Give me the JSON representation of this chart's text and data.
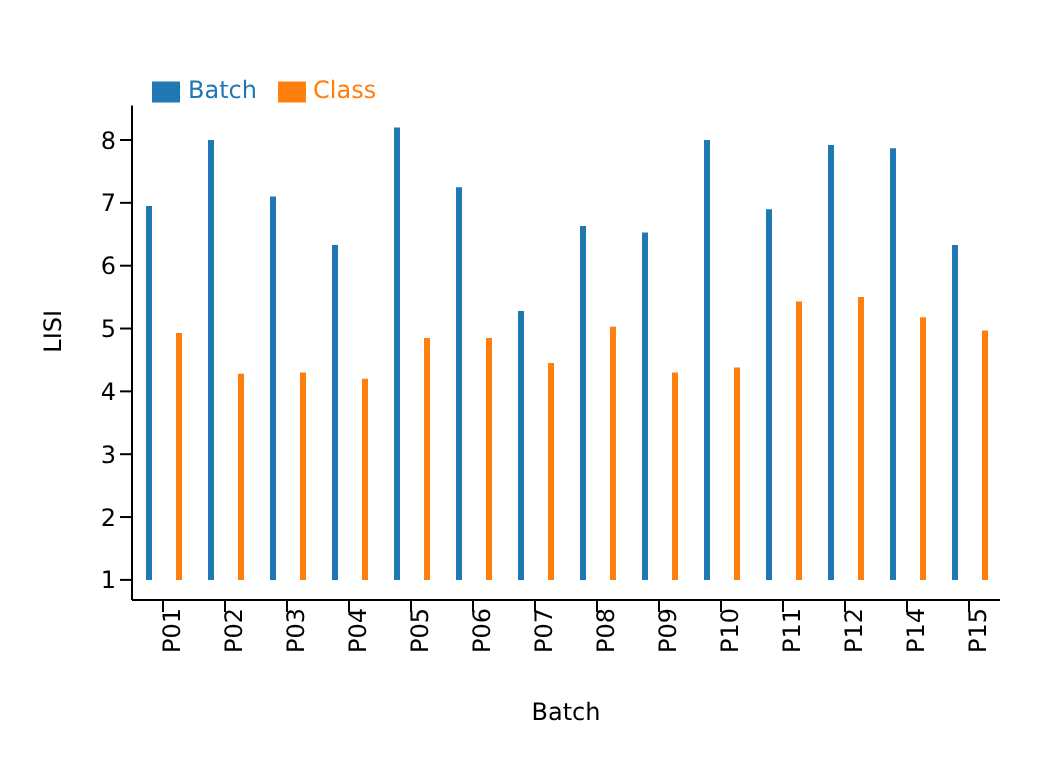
{
  "chart_data": {
    "type": "bar",
    "xlabel": "Batch",
    "ylabel": "LISI",
    "categories": [
      "P01",
      "P02",
      "P03",
      "P04",
      "P05",
      "P06",
      "P07",
      "P08",
      "P09",
      "P10",
      "P11",
      "P12",
      "P14",
      "P15"
    ],
    "series": [
      {
        "name": "Batch",
        "color": "#1f77b4",
        "base": [
          1,
          1,
          1,
          1,
          1,
          1,
          1,
          1,
          1,
          1,
          1,
          1,
          1,
          1
        ],
        "values": [
          5.95,
          7.0,
          6.1,
          5.33,
          7.2,
          6.25,
          4.28,
          5.63,
          5.53,
          7.0,
          5.9,
          6.92,
          6.87,
          5.33
        ]
      },
      {
        "name": "Class",
        "color": "#ff7f0e",
        "base": [
          1,
          1,
          1,
          1,
          1,
          1,
          1,
          1,
          1,
          1,
          1,
          1,
          1,
          1
        ],
        "values": [
          3.93,
          3.28,
          3.3,
          3.2,
          3.85,
          3.85,
          3.45,
          4.03,
          3.3,
          3.38,
          4.43,
          4.5,
          4.18,
          3.97
        ]
      }
    ],
    "ylim": [
      0.68,
      8.55
    ],
    "yticks": [
      1,
      2,
      3,
      4,
      5,
      6,
      7,
      8
    ],
    "grid": false,
    "legend": "top left"
  }
}
